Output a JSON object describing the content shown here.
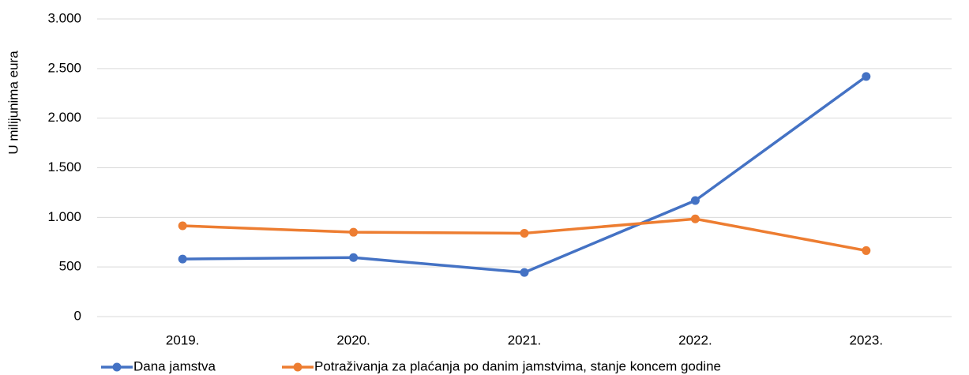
{
  "chart_data": {
    "type": "line",
    "y_label": "U milijunima eura",
    "categories": [
      "2019.",
      "2020.",
      "2021.",
      "2022.",
      "2023."
    ],
    "series": [
      {
        "name": "Dana jamstva",
        "color": "#4472c4",
        "values": [
          580,
          595,
          445,
          1170,
          2420
        ]
      },
      {
        "name": "Potraživanja za plaćanja po danim jamstvima, stanje koncem godine",
        "color": "#ed7d31",
        "values": [
          915,
          850,
          840,
          985,
          665
        ]
      }
    ],
    "ylim": [
      0,
      3000
    ],
    "yticks": [
      0,
      500,
      {
        "value": 1000,
        "label": "1.000"
      },
      {
        "value": 1500,
        "label": "1.500"
      },
      {
        "value": 2000,
        "label": "2.000"
      },
      {
        "value": 2500,
        "label": "2.500"
      },
      {
        "value": 3000,
        "label": "3.000"
      }
    ],
    "grid": true,
    "legend": "bottom"
  }
}
